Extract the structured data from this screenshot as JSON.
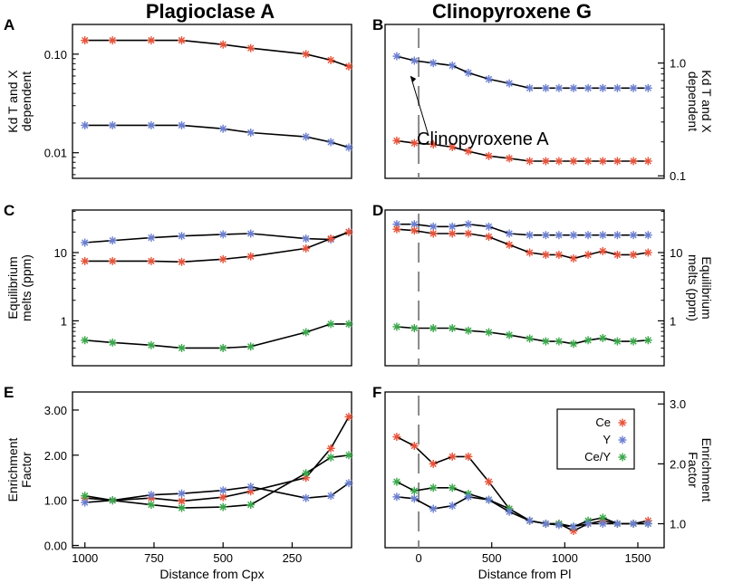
{
  "titles": {
    "left": "Plagioclase A",
    "right": "Clinopyroxene G"
  },
  "annotation": "Clinopyroxene A",
  "legend": [
    {
      "label": "Ce",
      "color": "#e8533a"
    },
    {
      "label": "Y",
      "color": "#6b7fd1"
    },
    {
      "label": "Ce/Y",
      "color": "#3aa84a"
    }
  ],
  "colors": {
    "Ce": "#e8533a",
    "Y": "#6b7fd1",
    "Ce/Y": "#3aa84a",
    "line": "#000000",
    "dash": "#888888"
  },
  "chart_data": [
    {
      "panel": "A",
      "type": "line",
      "yscale": "log",
      "ylabel": "Kd T and X dependent",
      "xlabel": "",
      "xlim": [
        1045,
        35
      ],
      "ylim": [
        0.0055,
        0.2
      ],
      "yticks": [
        {
          "v": 0.01,
          "label": "0.01"
        },
        {
          "v": 0.1,
          "label": "0.10"
        }
      ],
      "xticks": [],
      "series": [
        {
          "name": "Ce",
          "x": [
            1000,
            900,
            760,
            650,
            500,
            400,
            200,
            110,
            45
          ],
          "y": [
            0.138,
            0.138,
            0.138,
            0.138,
            0.125,
            0.115,
            0.1,
            0.087,
            0.075
          ]
        },
        {
          "name": "Y",
          "x": [
            1000,
            900,
            760,
            650,
            500,
            400,
            200,
            110,
            45
          ],
          "y": [
            0.019,
            0.019,
            0.019,
            0.019,
            0.0175,
            0.016,
            0.0145,
            0.0128,
            0.0113
          ]
        }
      ]
    },
    {
      "panel": "B",
      "type": "line",
      "yscale": "log",
      "ylabel": "Kd T and X dependent",
      "xlabel": "",
      "xlim": [
        -230,
        1680
      ],
      "ylim": [
        0.095,
        2.2
      ],
      "yticks": [
        {
          "v": 0.1,
          "label": "0.1"
        },
        {
          "v": 1.0,
          "label": "1.0"
        }
      ],
      "xticks": [],
      "series": [
        {
          "name": "Y",
          "x": [
            -150,
            -30,
            100,
            230,
            340,
            480,
            620,
            760,
            870,
            960,
            1060,
            1160,
            1260,
            1360,
            1470,
            1570
          ],
          "y": [
            1.15,
            1.05,
            1.0,
            0.95,
            0.82,
            0.72,
            0.66,
            0.6,
            0.6,
            0.6,
            0.6,
            0.6,
            0.6,
            0.6,
            0.6,
            0.6
          ]
        },
        {
          "name": "Ce",
          "x": [
            -150,
            -30,
            100,
            230,
            340,
            480,
            620,
            760,
            870,
            960,
            1060,
            1160,
            1260,
            1360,
            1470,
            1570
          ],
          "y": [
            0.205,
            0.195,
            0.19,
            0.18,
            0.165,
            0.15,
            0.143,
            0.135,
            0.135,
            0.135,
            0.135,
            0.135,
            0.135,
            0.135,
            0.135,
            0.135
          ]
        }
      ]
    },
    {
      "panel": "C",
      "type": "line",
      "yscale": "log",
      "ylabel": "Equilibrium melts (ppm)",
      "xlabel": "",
      "xlim": [
        1045,
        35
      ],
      "ylim": [
        0.22,
        42
      ],
      "yticks": [
        {
          "v": 1,
          "label": "1"
        },
        {
          "v": 10,
          "label": "10"
        }
      ],
      "xticks": [],
      "series": [
        {
          "name": "Y",
          "x": [
            1000,
            900,
            760,
            650,
            500,
            400,
            200,
            110,
            45
          ],
          "y": [
            14,
            15,
            16.5,
            17.5,
            18.5,
            19,
            16,
            15.5,
            20
          ]
        },
        {
          "name": "Ce",
          "x": [
            1000,
            900,
            760,
            650,
            500,
            400,
            200,
            110,
            45
          ],
          "y": [
            7.5,
            7.5,
            7.5,
            7.3,
            8,
            8.8,
            11.5,
            16,
            20
          ]
        },
        {
          "name": "Ce/Y",
          "x": [
            1000,
            900,
            760,
            650,
            500,
            400,
            200,
            110,
            45
          ],
          "y": [
            0.52,
            0.48,
            0.44,
            0.4,
            0.4,
            0.42,
            0.68,
            0.9,
            0.9
          ]
        }
      ]
    },
    {
      "panel": "D",
      "type": "line",
      "yscale": "log",
      "ylabel": "Equilibrium melts (ppm)",
      "xlabel": "",
      "xlim": [
        -230,
        1680
      ],
      "ylim": [
        0.22,
        42
      ],
      "yticks": [
        {
          "v": 1,
          "label": "1"
        },
        {
          "v": 10,
          "label": "10"
        }
      ],
      "xticks": [],
      "series": [
        {
          "name": "Y",
          "x": [
            -150,
            -30,
            100,
            230,
            340,
            480,
            620,
            760,
            870,
            960,
            1060,
            1160,
            1260,
            1360,
            1470,
            1570
          ],
          "y": [
            26,
            26,
            24,
            24,
            26,
            24,
            19,
            18,
            18,
            18,
            18,
            18,
            18,
            18,
            18,
            18
          ]
        },
        {
          "name": "Ce",
          "x": [
            -150,
            -30,
            100,
            230,
            340,
            480,
            620,
            760,
            870,
            960,
            1060,
            1160,
            1260,
            1360,
            1470,
            1570
          ],
          "y": [
            22,
            21,
            19,
            19,
            19,
            17,
            13,
            10,
            9.3,
            9.3,
            8.2,
            9.3,
            10.5,
            9.3,
            9.3,
            10
          ]
        },
        {
          "name": "Ce/Y",
          "x": [
            -150,
            -30,
            100,
            230,
            340,
            480,
            620,
            760,
            870,
            960,
            1060,
            1160,
            1260,
            1360,
            1470,
            1570
          ],
          "y": [
            0.82,
            0.78,
            0.78,
            0.78,
            0.72,
            0.68,
            0.62,
            0.55,
            0.5,
            0.5,
            0.46,
            0.52,
            0.56,
            0.5,
            0.5,
            0.52
          ]
        }
      ]
    },
    {
      "panel": "E",
      "type": "line",
      "yscale": "linear",
      "ylabel": "Enrichment Factor",
      "xlabel": "Distance from Cpx",
      "xlim": [
        1045,
        35
      ],
      "ylim": [
        -0.05,
        3.4
      ],
      "yticks": [
        {
          "v": 0,
          "label": "0.00"
        },
        {
          "v": 1,
          "label": "1.00"
        },
        {
          "v": 2,
          "label": "2.00"
        },
        {
          "v": 3,
          "label": "3.00"
        }
      ],
      "xticks": [
        {
          "v": 1000,
          "label": "1000"
        },
        {
          "v": 750,
          "label": "750"
        },
        {
          "v": 500,
          "label": "500"
        },
        {
          "v": 250,
          "label": "250"
        }
      ],
      "series": [
        {
          "name": "Ce",
          "x": [
            1000,
            900,
            760,
            650,
            500,
            400,
            200,
            110,
            45
          ],
          "y": [
            1.05,
            1.0,
            1.05,
            0.98,
            1.07,
            1.2,
            1.5,
            2.15,
            2.85
          ]
        },
        {
          "name": "Y",
          "x": [
            1000,
            900,
            760,
            650,
            500,
            400,
            200,
            110,
            45
          ],
          "y": [
            0.95,
            1.0,
            1.12,
            1.15,
            1.22,
            1.3,
            1.05,
            1.1,
            1.38
          ]
        },
        {
          "name": "Ce/Y",
          "x": [
            1000,
            900,
            760,
            650,
            500,
            400,
            200,
            110,
            45
          ],
          "y": [
            1.1,
            1.0,
            0.9,
            0.83,
            0.85,
            0.9,
            1.6,
            1.95,
            2.0
          ]
        }
      ]
    },
    {
      "panel": "F",
      "type": "line",
      "yscale": "linear",
      "ylabel": "Enrichment Factor",
      "xlabel": "Distance from Pl",
      "xlim": [
        -230,
        1680
      ],
      "ylim": [
        0.6,
        3.2
      ],
      "yticks": [
        {
          "v": 1,
          "label": "1.0"
        },
        {
          "v": 2,
          "label": "2.0"
        },
        {
          "v": 3,
          "label": "3.0"
        }
      ],
      "xticks": [
        {
          "v": 0,
          "label": "0"
        },
        {
          "v": 500,
          "label": "500"
        },
        {
          "v": 1000,
          "label": "1000"
        },
        {
          "v": 1500,
          "label": "1500"
        }
      ],
      "series": [
        {
          "name": "Ce",
          "x": [
            -150,
            -30,
            100,
            230,
            340,
            480,
            620,
            760,
            870,
            960,
            1060,
            1160,
            1260,
            1360,
            1470,
            1570
          ],
          "y": [
            2.45,
            2.3,
            2.0,
            2.12,
            2.12,
            1.7,
            1.25,
            1.05,
            1.0,
            1.0,
            0.88,
            1.0,
            1.05,
            1.0,
            1.0,
            1.05
          ]
        },
        {
          "name": "Ce/Y",
          "x": [
            -150,
            -30,
            100,
            230,
            340,
            480,
            620,
            760,
            870,
            960,
            1060,
            1160,
            1260,
            1360,
            1470,
            1570
          ],
          "y": [
            1.7,
            1.55,
            1.6,
            1.6,
            1.5,
            1.4,
            1.25,
            1.05,
            1.0,
            1.0,
            0.95,
            1.05,
            1.1,
            1.0,
            1.0,
            1.0
          ]
        },
        {
          "name": "Y",
          "x": [
            -150,
            -30,
            100,
            230,
            340,
            480,
            620,
            760,
            870,
            960,
            1060,
            1160,
            1260,
            1360,
            1470,
            1570
          ],
          "y": [
            1.45,
            1.42,
            1.25,
            1.3,
            1.45,
            1.4,
            1.2,
            1.05,
            1.0,
            0.98,
            0.95,
            1.0,
            1.0,
            1.0,
            1.0,
            1.0
          ]
        }
      ]
    }
  ]
}
